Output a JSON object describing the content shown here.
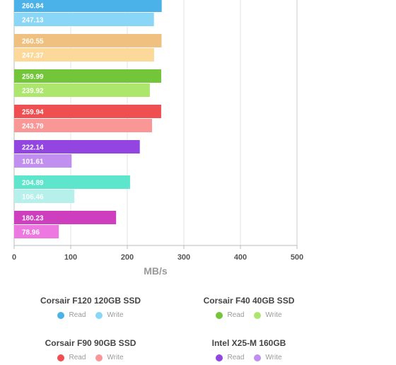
{
  "chart_data": {
    "type": "bar",
    "orientation": "horizontal",
    "xlabel": "MB/s",
    "xlim": [
      0,
      500
    ],
    "xticks": [
      0,
      100,
      200,
      300,
      400,
      500
    ],
    "grid": true,
    "legend_position": "bottom",
    "groups": [
      {
        "name": "Corsair F120 120GB SSD",
        "read": 260.84,
        "write": 247.13,
        "read_label": "260.84",
        "write_label": "247.13",
        "read_color": "#4ab2e8",
        "write_color": "#8ad6f7"
      },
      {
        "name": "Corsair F40 40GB SSD",
        "read": 260.55,
        "write": 247.37,
        "read_label": "260.55",
        "write_label": "247.37",
        "read_color": "#efc07f",
        "write_color": "#fcd99b"
      },
      {
        "name": "Corsair F90 90GB SSD",
        "read": 259.99,
        "write": 239.92,
        "read_label": "259.99",
        "write_label": "239.92",
        "read_color": "#73c639",
        "write_color": "#ace66d"
      },
      {
        "name": "Intel X25-M 160GB",
        "read": 259.94,
        "write": 243.79,
        "read_label": "259.94",
        "write_label": "243.79",
        "read_color": "#ef4f51",
        "write_color": "#f99797"
      },
      {
        "name": "",
        "read": 222.14,
        "write": 101.61,
        "read_label": "222.14",
        "write_label": "101.61",
        "read_color": "#9245e1",
        "write_color": "#c18ff0"
      },
      {
        "name": "",
        "read": 204.89,
        "write": 106.46,
        "read_label": "204.89",
        "write_label": "106.46",
        "read_color": "#5de6cc",
        "write_color": "#b5f0ea"
      },
      {
        "name": "",
        "read": 180.23,
        "write": 78.96,
        "read_label": "180.23",
        "write_label": "78.96",
        "read_color": "#ce3fc0",
        "write_color": "#ee78e1"
      }
    ],
    "series": [
      {
        "name": "Read"
      },
      {
        "name": "Write"
      }
    ]
  },
  "legend": {
    "groups": [
      {
        "title": "Corsair F120 120GB SSD",
        "read_label": "Read",
        "write_label": "Write",
        "read_color": "#4ab2e8",
        "write_color": "#8ad6f7"
      },
      {
        "title": "Corsair F40 40GB SSD",
        "read_label": "Read",
        "write_label": "Write",
        "read_color": "#73c639",
        "write_color": "#ace66d"
      },
      {
        "title": "Corsair F90 90GB SSD",
        "read_label": "Read",
        "write_label": "Write",
        "read_color": "#ef4f51",
        "write_color": "#f99797"
      },
      {
        "title": "Intel X25-M 160GB",
        "read_label": "Read",
        "write_label": "Write",
        "read_color": "#9245e1",
        "write_color": "#c18ff0"
      }
    ]
  }
}
